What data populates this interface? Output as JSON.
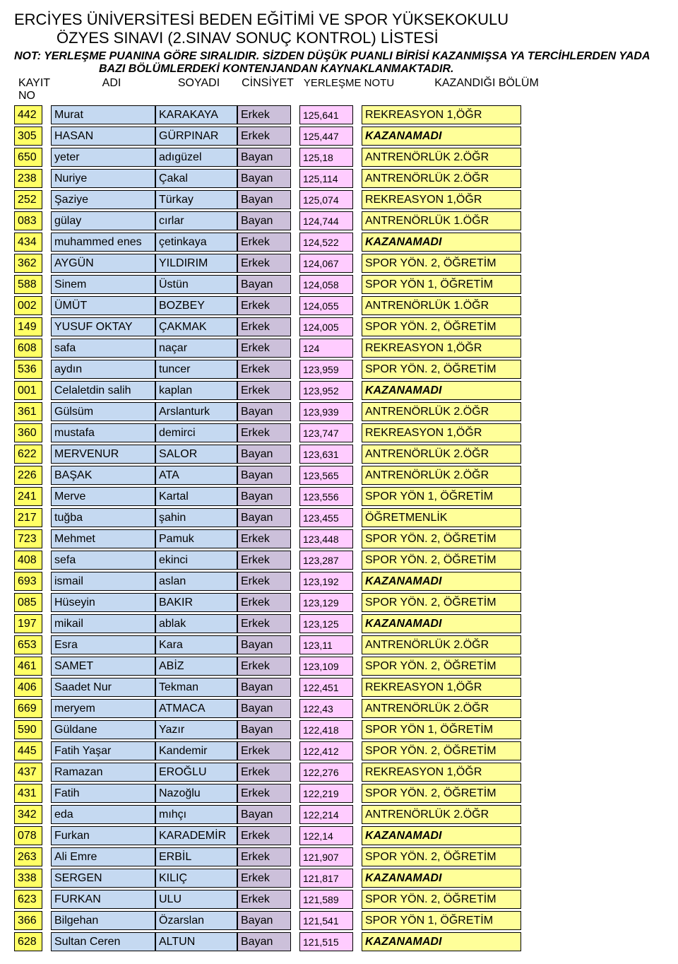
{
  "header": {
    "title1": "ERCİYES ÜNİVERSİTESİ BEDEN EĞİTİMİ VE SPOR YÜKSEKOKULU",
    "title2": "ÖZYES SINAVI (2.SINAV SONUÇ KONTROL) LİSTESİ",
    "note1": "NOT: YERLEŞME PUANINA GÖRE SIRALIDIR. SİZDEN DÜŞÜK PUANLI BİRİSİ KAZANMIŞSA YA TERCİHLERDEN YADA",
    "note2": "BAZI BÖLÜMLERDEKİ KONTENJANDAN KAYNAKLANMAKTADIR.",
    "col_kayit": "KAYIT NO",
    "col_adi": "ADI",
    "col_soyadi": "SOYADI",
    "col_cinsiyet": "CİNSİYET",
    "col_notu": "YERLEŞME NOTU",
    "col_bolum": "KAZANDIĞI BÖLÜM"
  },
  "colors": {
    "no_bg": "#ffff66",
    "name_bg": "#c5d9f1",
    "cin_bg": "#ccc0da",
    "notu_bg": "#ffccff",
    "bolum_bg": "#ffff99"
  },
  "rows": [
    {
      "no": "442",
      "adi": "Murat",
      "soy": "KARAKAYA",
      "cin": "Erkek",
      "notu": "125,641",
      "bol": "REKREASYON 1,ÖĞR",
      "kaz": false
    },
    {
      "no": "305",
      "adi": "HASAN",
      "soy": "GÜRPINAR",
      "cin": "Erkek",
      "notu": "125,447",
      "bol": "KAZANAMADI",
      "kaz": true
    },
    {
      "no": "650",
      "adi": "yeter",
      "soy": "adıgüzel",
      "cin": "Bayan",
      "notu": "125,18",
      "bol": "ANTRENÖRLÜK 2.ÖĞR",
      "kaz": false
    },
    {
      "no": "238",
      "adi": "Nuriye",
      "soy": "Çakal",
      "cin": "Bayan",
      "notu": "125,114",
      "bol": "ANTRENÖRLÜK 2.ÖĞR",
      "kaz": false
    },
    {
      "no": "252",
      "adi": "Şaziye",
      "soy": "Türkay",
      "cin": "Bayan",
      "notu": "125,074",
      "bol": "REKREASYON 1,ÖĞR",
      "kaz": false
    },
    {
      "no": "083",
      "adi": "gülay",
      "soy": "cırlar",
      "cin": "Bayan",
      "notu": "124,744",
      "bol": "ANTRENÖRLÜK 1.ÖĞR",
      "kaz": false
    },
    {
      "no": "434",
      "adi": "muhammed enes",
      "soy": "çetinkaya",
      "cin": "Erkek",
      "notu": "124,522",
      "bol": "KAZANAMADI",
      "kaz": true
    },
    {
      "no": "362",
      "adi": "AYGÜN",
      "soy": "YILDIRIM",
      "cin": "Erkek",
      "notu": "124,067",
      "bol": "SPOR YÖN. 2, ÖĞRETİM",
      "kaz": false
    },
    {
      "no": "588",
      "adi": "Sinem",
      "soy": "Üstün",
      "cin": "Bayan",
      "notu": "124,058",
      "bol": "SPOR YÖN 1, ÖĞRETİM",
      "kaz": false
    },
    {
      "no": "002",
      "adi": "ÜMÜT",
      "soy": "BOZBEY",
      "cin": "Erkek",
      "notu": "124,055",
      "bol": "ANTRENÖRLÜK 1.ÖĞR",
      "kaz": false
    },
    {
      "no": "149",
      "adi": "YUSUF OKTAY",
      "soy": "ÇAKMAK",
      "cin": "Erkek",
      "notu": "124,005",
      "bol": "SPOR YÖN. 2, ÖĞRETİM",
      "kaz": false
    },
    {
      "no": "608",
      "adi": "safa",
      "soy": "naçar",
      "cin": "Erkek",
      "notu": "124",
      "bol": "REKREASYON 1,ÖĞR",
      "kaz": false
    },
    {
      "no": "536",
      "adi": "aydın",
      "soy": "tuncer",
      "cin": "Erkek",
      "notu": "123,959",
      "bol": "SPOR YÖN. 2, ÖĞRETİM",
      "kaz": false
    },
    {
      "no": "001",
      "adi": "Celaletdin salih",
      "soy": "kaplan",
      "cin": "Erkek",
      "notu": "123,952",
      "bol": "KAZANAMADI",
      "kaz": true
    },
    {
      "no": "361",
      "adi": "Gülsüm",
      "soy": "Arslanturk",
      "cin": "Bayan",
      "notu": "123,939",
      "bol": "ANTRENÖRLÜK 2.ÖĞR",
      "kaz": false
    },
    {
      "no": "360",
      "adi": "mustafa",
      "soy": "demirci",
      "cin": "Erkek",
      "notu": "123,747",
      "bol": "REKREASYON 1,ÖĞR",
      "kaz": false
    },
    {
      "no": "622",
      "adi": "MERVENUR",
      "soy": "SALOR",
      "cin": "Bayan",
      "notu": "123,631",
      "bol": "ANTRENÖRLÜK 2.ÖĞR",
      "kaz": false
    },
    {
      "no": "226",
      "adi": "BAŞAK",
      "soy": "ATA",
      "cin": "Bayan",
      "notu": "123,565",
      "bol": "ANTRENÖRLÜK 2.ÖĞR",
      "kaz": false
    },
    {
      "no": "241",
      "adi": "Merve",
      "soy": "Kartal",
      "cin": "Bayan",
      "notu": "123,556",
      "bol": "SPOR YÖN 1, ÖĞRETİM",
      "kaz": false
    },
    {
      "no": "217",
      "adi": "tuğba",
      "soy": "şahin",
      "cin": "Bayan",
      "notu": "123,455",
      "bol": "ÖĞRETMENLİK",
      "kaz": false
    },
    {
      "no": "723",
      "adi": "Mehmet",
      "soy": "Pamuk",
      "cin": "Erkek",
      "notu": "123,448",
      "bol": "SPOR YÖN. 2, ÖĞRETİM",
      "kaz": false
    },
    {
      "no": "408",
      "adi": "sefa",
      "soy": "ekinci",
      "cin": "Erkek",
      "notu": "123,287",
      "bol": "SPOR YÖN. 2, ÖĞRETİM",
      "kaz": false
    },
    {
      "no": "693",
      "adi": "ismail",
      "soy": "aslan",
      "cin": "Erkek",
      "notu": "123,192",
      "bol": "KAZANAMADI",
      "kaz": true
    },
    {
      "no": "085",
      "adi": "Hüseyin",
      "soy": "BAKIR",
      "cin": "Erkek",
      "notu": "123,129",
      "bol": "SPOR YÖN. 2, ÖĞRETİM",
      "kaz": false
    },
    {
      "no": "197",
      "adi": "mikail",
      "soy": "ablak",
      "cin": "Erkek",
      "notu": "123,125",
      "bol": "KAZANAMADI",
      "kaz": true
    },
    {
      "no": "653",
      "adi": "Esra",
      "soy": "Kara",
      "cin": "Bayan",
      "notu": "123,11",
      "bol": "ANTRENÖRLÜK 2.ÖĞR",
      "kaz": false
    },
    {
      "no": "461",
      "adi": "SAMET",
      "soy": "ABİZ",
      "cin": "Erkek",
      "notu": "123,109",
      "bol": "SPOR YÖN. 2, ÖĞRETİM",
      "kaz": false
    },
    {
      "no": "406",
      "adi": "Saadet Nur",
      "soy": "Tekman",
      "cin": "Bayan",
      "notu": "122,451",
      "bol": "REKREASYON 1,ÖĞR",
      "kaz": false
    },
    {
      "no": "669",
      "adi": "meryem",
      "soy": "ATMACA",
      "cin": "Bayan",
      "notu": "122,43",
      "bol": "ANTRENÖRLÜK 2.ÖĞR",
      "kaz": false
    },
    {
      "no": "590",
      "adi": "Güldane",
      "soy": "Yazır",
      "cin": "Bayan",
      "notu": "122,418",
      "bol": "SPOR YÖN 1, ÖĞRETİM",
      "kaz": false
    },
    {
      "no": "445",
      "adi": "Fatih Yaşar",
      "soy": "Kandemir",
      "cin": "Erkek",
      "notu": "122,412",
      "bol": "SPOR YÖN. 2, ÖĞRETİM",
      "kaz": false
    },
    {
      "no": "437",
      "adi": "Ramazan",
      "soy": "EROĞLU",
      "cin": "Erkek",
      "notu": "122,276",
      "bol": "REKREASYON 1,ÖĞR",
      "kaz": false
    },
    {
      "no": "431",
      "adi": "Fatih",
      "soy": "Nazoğlu",
      "cin": "Erkek",
      "notu": "122,219",
      "bol": "SPOR YÖN. 2, ÖĞRETİM",
      "kaz": false
    },
    {
      "no": "342",
      "adi": "eda",
      "soy": "mıhçı",
      "cin": "Bayan",
      "notu": "122,214",
      "bol": "ANTRENÖRLÜK 2.ÖĞR",
      "kaz": false
    },
    {
      "no": "078",
      "adi": "Furkan",
      "soy": "KARADEMİR",
      "cin": "Erkek",
      "notu": "122,14",
      "bol": "KAZANAMADI",
      "kaz": true
    },
    {
      "no": "263",
      "adi": "Ali Emre",
      "soy": "ERBİL",
      "cin": "Erkek",
      "notu": "121,907",
      "bol": "SPOR YÖN. 2, ÖĞRETİM",
      "kaz": false
    },
    {
      "no": "338",
      "adi": "SERGEN",
      "soy": "KILIÇ",
      "cin": "Erkek",
      "notu": "121,817",
      "bol": "KAZANAMADI",
      "kaz": true
    },
    {
      "no": "623",
      "adi": "FURKAN",
      "soy": "ULU",
      "cin": "Erkek",
      "notu": "121,589",
      "bol": "SPOR YÖN. 2, ÖĞRETİM",
      "kaz": false
    },
    {
      "no": "366",
      "adi": "Bilgehan",
      "soy": "Özarslan",
      "cin": "Bayan",
      "notu": "121,541",
      "bol": "SPOR YÖN 1, ÖĞRETİM",
      "kaz": false
    },
    {
      "no": "628",
      "adi": "Sultan Ceren",
      "soy": "ALTUN",
      "cin": "Bayan",
      "notu": "121,515",
      "bol": "KAZANAMADI",
      "kaz": true
    }
  ]
}
